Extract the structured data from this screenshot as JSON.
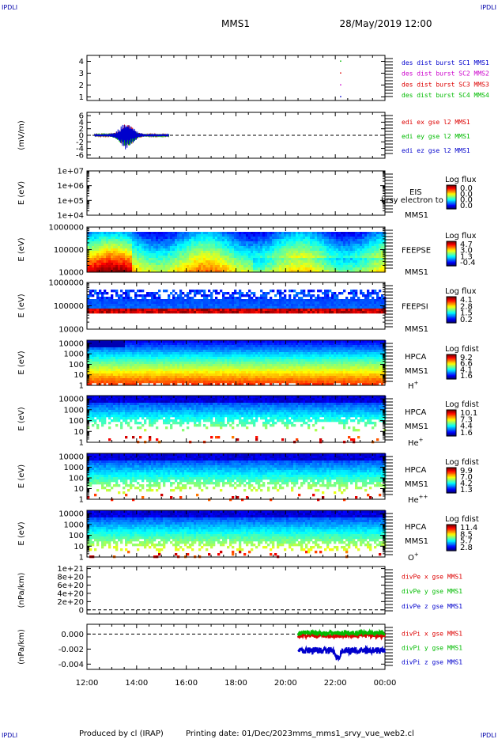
{
  "header": {
    "logo_left": "IPDLI",
    "logo_right": "IPDLI",
    "spacecraft": "MMS1",
    "date": "28/May/2019 12:00"
  },
  "footer": {
    "logo_left": "IPDLI",
    "logo_right": "IPDLI",
    "produced_by": "Produced by cl (IRAP)",
    "printing_date": "Printing date: 01/Dec/2023",
    "filename": "mms_mms1_srvy_vue_web2.cl"
  },
  "colors": {
    "blue": "#0000cc",
    "green": "#00bb00",
    "red": "#dd0000",
    "magenta": "#cc00cc"
  },
  "chart_data": {
    "type": "multi-panel",
    "x_ticks": [
      "12:00",
      "14:00",
      "16:00",
      "18:00",
      "20:00",
      "22:00",
      "00:00"
    ],
    "x_range_hours": [
      12,
      24
    ],
    "panels": [
      {
        "id": "dist",
        "type": "scatter",
        "ylim": [
          0.7,
          4.5
        ],
        "yticks": [
          "1",
          "2",
          "3",
          "4"
        ],
        "legend": [
          {
            "label": "des dist burst SC1 MMS1",
            "color": "#0000cc"
          },
          {
            "label": "des dist burst SC2 MMS2",
            "color": "#cc00cc"
          },
          {
            "label": "des dist burst SC3 MMS3",
            "color": "#dd0000"
          },
          {
            "label": "des dist burst SC4 MMS4",
            "color": "#00bb00"
          }
        ],
        "points": [
          {
            "x": 22.0,
            "y": 1,
            "series": 0
          },
          {
            "x": 22.0,
            "y": 2,
            "series": 1
          },
          {
            "x": 22.0,
            "y": 3,
            "series": 2
          },
          {
            "x": 22.0,
            "y": 4,
            "series": 3
          }
        ]
      },
      {
        "id": "edi",
        "type": "line",
        "ylabel": "(mV/m)",
        "ylim": [
          -7,
          7
        ],
        "yticks": [
          "6",
          "4",
          "2",
          "0",
          "-2",
          "-4",
          "-6"
        ],
        "legend": [
          {
            "label": "edi ex gse l2 MMS1",
            "color": "#dd0000"
          },
          {
            "label": "edi ey gse l2 MMS1",
            "color": "#00bb00"
          },
          {
            "label": "edi ez gse l2 MMS1",
            "color": "#0000cc"
          }
        ],
        "x_span": [
          12.3,
          15.3
        ]
      },
      {
        "id": "eis",
        "type": "heatmap",
        "ylabel": "E (eV)",
        "ylog": [
          4,
          7
        ],
        "yticks": [
          "1e+07",
          "1e+06",
          "1e+05",
          "1e+04"
        ],
        "labels": [
          "EIS",
          "MMS1"
        ],
        "overlay_text": "brsy electron to",
        "colorbar_title": "Log flux",
        "colorbar_ticks": [
          "0.0",
          "0.0",
          "0.0",
          "0.0"
        ]
      },
      {
        "id": "feepse",
        "type": "heatmap",
        "ylabel": "E (eV)",
        "ylog": [
          4,
          6
        ],
        "yticks": [
          "1000000",
          "100000",
          "10000"
        ],
        "labels": [
          "FEEPSE",
          "MMS1"
        ],
        "colorbar_title": "Log flux",
        "colorbar_ticks": [
          "4.7",
          "3.0",
          "1.3",
          "-0.4"
        ]
      },
      {
        "id": "feepsi",
        "type": "heatmap",
        "ylabel": "E (eV)",
        "ylog": [
          4,
          6
        ],
        "yticks": [
          "1000000",
          "100000",
          "10000"
        ],
        "labels": [
          "FEEPSI",
          "MMS1"
        ],
        "colorbar_title": "Log flux",
        "colorbar_ticks": [
          "4.1",
          "2.8",
          "1.5",
          "0.2"
        ]
      },
      {
        "id": "hpca_h",
        "type": "heatmap",
        "ylabel": "E (eV)",
        "ylog": [
          0,
          4.3
        ],
        "yticks": [
          "10000",
          "1000",
          "100",
          "10",
          "1"
        ],
        "labels": [
          "HPCA",
          "MMS1"
        ],
        "species": "H",
        "species_sup": "+",
        "colorbar_title": "Log fdist",
        "colorbar_ticks": [
          "9.2",
          "6.6",
          "4.1",
          "1.6"
        ]
      },
      {
        "id": "hpca_he",
        "type": "heatmap",
        "ylabel": "E (eV)",
        "ylog": [
          0,
          4.3
        ],
        "yticks": [
          "10000",
          "1000",
          "100",
          "10",
          "1"
        ],
        "labels": [
          "HPCA",
          "MMS1"
        ],
        "species": "He",
        "species_sup": "+",
        "colorbar_title": "Log fdist",
        "colorbar_ticks": [
          "10.1",
          "7.3",
          "4.4",
          "1.6"
        ]
      },
      {
        "id": "hpca_hepp",
        "type": "heatmap",
        "ylabel": "E (eV)",
        "ylog": [
          0,
          4.3
        ],
        "yticks": [
          "10000",
          "1000",
          "100",
          "10",
          "1"
        ],
        "labels": [
          "HPCA",
          "MMS1"
        ],
        "species": "He",
        "species_sup": "++",
        "colorbar_title": "Log fdist",
        "colorbar_ticks": [
          "9.9",
          "7.0",
          "4.2",
          "1.3"
        ]
      },
      {
        "id": "hpca_o",
        "type": "heatmap",
        "ylabel": "E (eV)",
        "ylog": [
          0,
          4.3
        ],
        "yticks": [
          "10000",
          "1000",
          "100",
          "10",
          "1"
        ],
        "labels": [
          "HPCA",
          "MMS1"
        ],
        "species": "O",
        "species_sup": "+",
        "colorbar_title": "Log fdist",
        "colorbar_ticks": [
          "11.4",
          "8.5",
          "5.7",
          "2.8"
        ]
      },
      {
        "id": "divpe",
        "type": "line",
        "ylabel": "(nPa/km)",
        "ylim": [
          -1e+20,
          1.05e+21
        ],
        "yticks": [
          "1e+21",
          "8e+20",
          "6e+20",
          "4e+20",
          "2e+20",
          "0"
        ],
        "legend": [
          {
            "label": "divPe x gse MMS1",
            "color": "#dd0000"
          },
          {
            "label": "divPe y gse MMS1",
            "color": "#00bb00"
          },
          {
            "label": "divPe z gse MMS1",
            "color": "#0000cc"
          }
        ]
      },
      {
        "id": "divpi",
        "type": "line",
        "ylabel": "(nPa/km)",
        "ylim": [
          -0.0047,
          0.0013
        ],
        "yticks": [
          "0.000",
          "-0.002",
          "-0.004"
        ],
        "ytick_values": [
          0,
          -0.002,
          -0.004
        ],
        "legend": [
          {
            "label": "divPi x gse MMS1",
            "color": "#dd0000"
          },
          {
            "label": "divPi y gse MMS1",
            "color": "#00bb00"
          },
          {
            "label": "divPi z gse MMS1",
            "color": "#0000cc"
          }
        ],
        "x_span": [
          20.5,
          24
        ],
        "series_levels": [
          {
            "mean": -0.0002,
            "color": "#dd0000"
          },
          {
            "mean": 0.00015,
            "color": "#00bb00"
          },
          {
            "mean": -0.0022,
            "color": "#0000cc"
          }
        ]
      }
    ]
  }
}
